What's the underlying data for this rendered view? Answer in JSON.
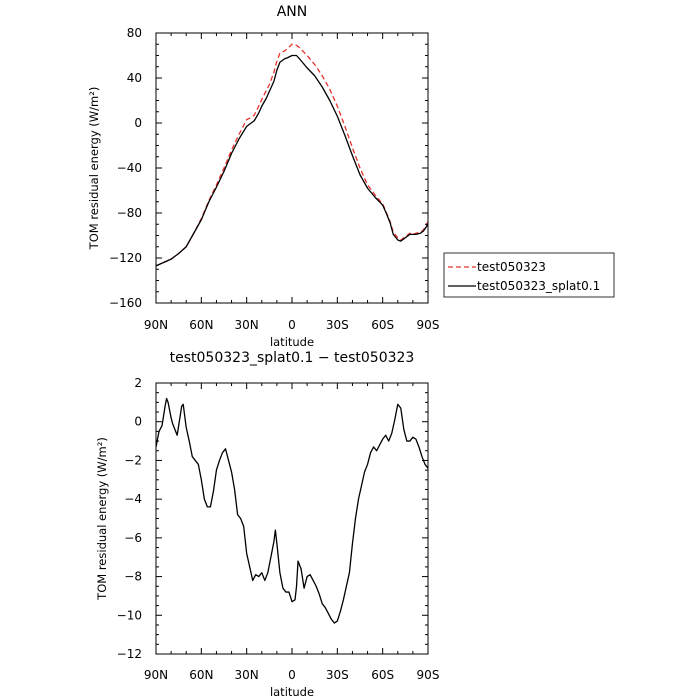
{
  "chart_data": [
    {
      "type": "line",
      "title": "ANN",
      "xlabel": "latitude",
      "ylabel": "TOM residual energy (W/m²)",
      "xlim": [
        90,
        -90
      ],
      "ylim": [
        -160,
        80
      ],
      "x_ticks": [
        {
          "value": 90,
          "label": "90N"
        },
        {
          "value": 60,
          "label": "60N"
        },
        {
          "value": 30,
          "label": "30N"
        },
        {
          "value": 0,
          "label": "0"
        },
        {
          "value": -30,
          "label": "30S"
        },
        {
          "value": -60,
          "label": "60S"
        },
        {
          "value": -90,
          "label": "90S"
        }
      ],
      "y_ticks": [
        {
          "value": 80,
          "label": "80"
        },
        {
          "value": 40,
          "label": "40"
        },
        {
          "value": 0,
          "label": "0"
        },
        {
          "value": -40,
          "label": "−40"
        },
        {
          "value": -80,
          "label": "−80"
        },
        {
          "value": -120,
          "label": "−120"
        },
        {
          "value": -160,
          "label": "−160"
        }
      ],
      "grid": false,
      "legend_position": "right",
      "series": [
        {
          "name": "test050323",
          "color": "#e8322c",
          "dash": "dashed",
          "x": [
            90,
            85,
            80,
            75,
            70,
            65,
            60,
            55,
            50,
            45,
            40,
            35,
            30,
            27,
            25,
            22,
            20,
            17,
            15,
            12,
            10,
            8,
            5,
            3,
            0,
            -3,
            -5,
            -10,
            -15,
            -20,
            -25,
            -30,
            -35,
            -40,
            -45,
            -50,
            -55,
            -60,
            -62,
            -65,
            -67,
            -70,
            -72,
            -75,
            -78,
            -80,
            -82,
            -85,
            -87,
            -89,
            -90
          ],
          "y": [
            -127,
            -124,
            -121,
            -116,
            -110,
            -98,
            -85,
            -69,
            -55,
            -40,
            -24,
            -10,
            3,
            5,
            7,
            15,
            21,
            29,
            34,
            45,
            55,
            62,
            64,
            66,
            70,
            69,
            67,
            60,
            52,
            42,
            30,
            15,
            -3,
            -22,
            -40,
            -55,
            -64,
            -72,
            -78,
            -88,
            -97,
            -102,
            -104,
            -101,
            -98,
            -99,
            -98,
            -97,
            -95,
            -90,
            -88
          ]
        },
        {
          "name": "test050323_splat0.1",
          "color": "#000000",
          "dash": "solid",
          "x": [
            90,
            85,
            80,
            75,
            70,
            65,
            60,
            55,
            50,
            45,
            40,
            35,
            30,
            27,
            25,
            22,
            20,
            17,
            15,
            12,
            10,
            8,
            5,
            3,
            0,
            -3,
            -5,
            -10,
            -15,
            -20,
            -25,
            -30,
            -35,
            -40,
            -45,
            -50,
            -55,
            -60,
            -62,
            -65,
            -67,
            -70,
            -72,
            -75,
            -78,
            -80,
            -82,
            -85,
            -87,
            -89,
            -90
          ],
          "y": [
            -127,
            -124,
            -121,
            -116,
            -110,
            -98,
            -86,
            -70,
            -57,
            -43,
            -27,
            -14,
            -3,
            0,
            2,
            9,
            15,
            22,
            28,
            37,
            47,
            54,
            57,
            58,
            60,
            60,
            57,
            49,
            42,
            32,
            20,
            6,
            -11,
            -29,
            -46,
            -58,
            -66,
            -73,
            -79,
            -89,
            -99,
            -104,
            -105,
            -102,
            -99,
            -99,
            -99,
            -98,
            -96,
            -92,
            -90
          ]
        }
      ]
    },
    {
      "type": "line",
      "title": "test050323_splat0.1 − test050323",
      "xlabel": "latitude",
      "ylabel": "TOM residual energy (W/m²)",
      "xlim": [
        90,
        -90
      ],
      "ylim": [
        -12,
        2
      ],
      "x_ticks": [
        {
          "value": 90,
          "label": "90N"
        },
        {
          "value": 60,
          "label": "60N"
        },
        {
          "value": 30,
          "label": "30N"
        },
        {
          "value": 0,
          "label": "0"
        },
        {
          "value": -30,
          "label": "30S"
        },
        {
          "value": -60,
          "label": "60S"
        },
        {
          "value": -90,
          "label": "90S"
        }
      ],
      "y_ticks": [
        {
          "value": 2,
          "label": "2"
        },
        {
          "value": 0,
          "label": "0"
        },
        {
          "value": -2,
          "label": "−2"
        },
        {
          "value": -4,
          "label": "−4"
        },
        {
          "value": -6,
          "label": "−6"
        },
        {
          "value": -8,
          "label": "−8"
        },
        {
          "value": -10,
          "label": "−10"
        },
        {
          "value": -12,
          "label": "−12"
        }
      ],
      "grid": false,
      "series": [
        {
          "color": "#000000",
          "dash": "solid",
          "x": [
            90,
            88,
            86,
            84,
            83,
            82,
            81,
            80,
            79,
            78,
            76,
            75,
            73,
            72,
            70,
            68,
            66,
            64,
            62,
            60,
            58,
            56,
            54,
            52,
            50,
            48,
            46,
            44,
            42,
            40,
            38,
            36,
            34,
            32,
            30,
            28,
            26,
            24,
            22,
            20,
            18,
            16,
            14,
            12,
            11,
            10,
            8,
            6,
            4,
            2,
            0,
            -2,
            -3,
            -4,
            -6,
            -8,
            -10,
            -12,
            -14,
            -16,
            -18,
            -20,
            -22,
            -24,
            -26,
            -28,
            -30,
            -32,
            -34,
            -36,
            -38,
            -40,
            -42,
            -44,
            -46,
            -48,
            -50,
            -52,
            -54,
            -56,
            -58,
            -60,
            -62,
            -64,
            -66,
            -68,
            -70,
            -72,
            -74,
            -76,
            -78,
            -80,
            -82,
            -84,
            -86,
            -88,
            -90
          ],
          "y": [
            -1.3,
            -0.5,
            -0.2,
            0.8,
            1.2,
            1.0,
            0.6,
            0.2,
            -0.1,
            -0.3,
            -0.7,
            -0.2,
            0.8,
            0.9,
            -0.3,
            -1.0,
            -1.8,
            -2.0,
            -2.2,
            -3.0,
            -4.0,
            -4.4,
            -4.4,
            -3.6,
            -2.5,
            -2.0,
            -1.6,
            -1.4,
            -2.0,
            -2.6,
            -3.5,
            -4.8,
            -5.0,
            -5.4,
            -6.8,
            -7.5,
            -8.2,
            -7.9,
            -8.0,
            -7.8,
            -8.2,
            -7.8,
            -7.0,
            -6.2,
            -5.6,
            -6.3,
            -7.8,
            -8.6,
            -8.8,
            -8.8,
            -9.3,
            -9.2,
            -8.5,
            -7.2,
            -7.6,
            -8.6,
            -8.0,
            -7.9,
            -8.2,
            -8.5,
            -8.9,
            -9.4,
            -9.6,
            -9.9,
            -10.2,
            -10.4,
            -10.3,
            -9.8,
            -9.2,
            -8.5,
            -7.8,
            -6.3,
            -5.0,
            -4.0,
            -3.3,
            -2.6,
            -2.2,
            -1.6,
            -1.3,
            -1.5,
            -1.2,
            -0.9,
            -0.7,
            -1.0,
            -0.6,
            0.1,
            0.9,
            0.7,
            -0.4,
            -1.0,
            -1.0,
            -0.8,
            -0.9,
            -1.3,
            -1.8,
            -2.2,
            -2.4
          ]
        }
      ]
    }
  ]
}
